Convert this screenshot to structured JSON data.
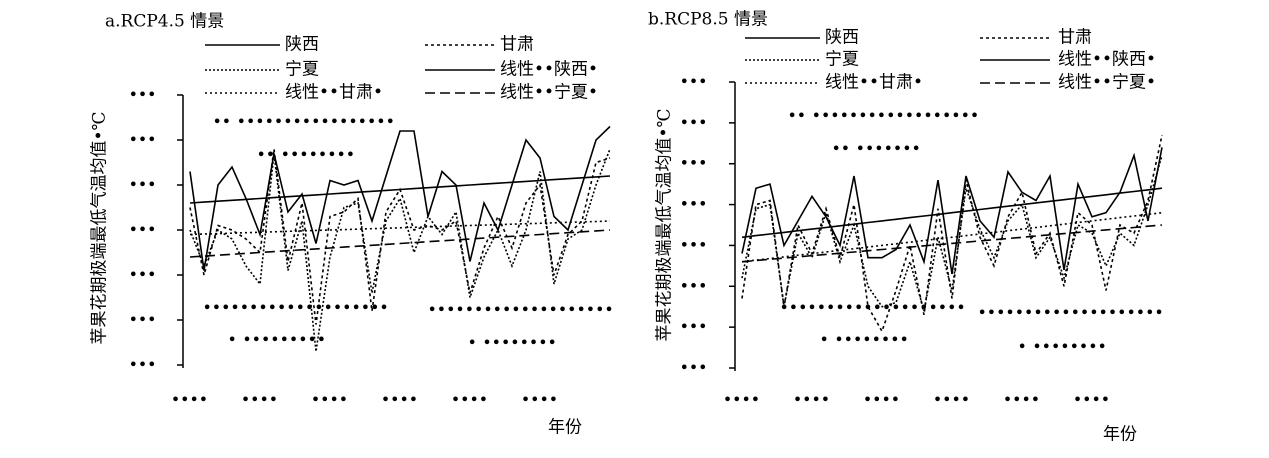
{
  "chart_data": [
    {
      "type": "line",
      "title": "a.RCP4.5 情景",
      "ylabel": "苹果花期极端最低气温均值•℃",
      "xlabel": "年份",
      "categories": [
        "••••",
        null,
        null,
        null,
        null,
        "••••",
        null,
        null,
        null,
        null,
        "••••",
        null,
        null,
        null,
        null,
        "••••",
        null,
        null,
        null,
        null,
        "••••",
        null,
        null,
        null,
        null,
        "••••",
        null,
        null,
        null,
        null,
        null
      ],
      "ylim": [
        0,
        6
      ],
      "yticks": [
        {
          "value": 0,
          "label": "•••"
        },
        {
          "value": 1,
          "label": "•••"
        },
        {
          "value": 2,
          "label": "•••"
        },
        {
          "value": 3,
          "label": "•••"
        },
        {
          "value": 4,
          "label": "•••"
        },
        {
          "value": 5,
          "label": "•••"
        },
        {
          "value": 6,
          "label": "•••"
        }
      ],
      "annotations": [
        "•• •••••••••••••••••",
        "•• ••••••••",
        "••••••••••••••••••••",
        "• •••••••••",
        "••••••••••••••••••••",
        "• ••••••••"
      ],
      "series": [
        {
          "name": "陕西",
          "color": "#000000",
          "dash": "none",
          "values": [
            4.3,
            2.1,
            4.0,
            4.4,
            3.7,
            2.9,
            4.7,
            3.4,
            3.8,
            2.7,
            4.1,
            4.0,
            4.1,
            3.2,
            4.2,
            5.2,
            5.2,
            3.3,
            4.3,
            4.0,
            2.3,
            3.6,
            3.0,
            4.0,
            5.0,
            4.6,
            3.3,
            3.0,
            4.0,
            5.0,
            5.3
          ]
        },
        {
          "name": "甘肃",
          "color": "#000000",
          "dash": "3,3",
          "values": [
            3.5,
            2.0,
            3.1,
            3.0,
            2.8,
            2.5,
            4.8,
            2.3,
            3.6,
            0.9,
            3.3,
            3.4,
            3.7,
            1.2,
            3.4,
            3.9,
            3.0,
            3.1,
            3.0,
            3.2,
            1.6,
            2.6,
            3.3,
            2.6,
            3.6,
            4.0,
            2.0,
            2.9,
            3.2,
            4.5,
            4.6
          ]
        },
        {
          "name": "宁夏",
          "color": "#000000",
          "dash": "2,2",
          "values": [
            3.0,
            2.2,
            3.0,
            2.8,
            2.2,
            1.8,
            4.7,
            2.1,
            3.2,
            0.3,
            2.4,
            3.5,
            3.6,
            1.6,
            3.2,
            3.7,
            2.5,
            3.3,
            2.9,
            3.4,
            1.5,
            2.4,
            3.0,
            2.2,
            3.0,
            4.3,
            1.8,
            2.8,
            3.0,
            4.0,
            4.8
          ]
        },
        {
          "name": "线性••陕西•",
          "color": "#000000",
          "dash": "none",
          "values": [
            3.6,
            3.62,
            3.64,
            3.66,
            3.68,
            3.7,
            3.72,
            3.74,
            3.76,
            3.78,
            3.8,
            3.82,
            3.84,
            3.86,
            3.88,
            3.9,
            3.92,
            3.94,
            3.96,
            3.98,
            4.0,
            4.02,
            4.04,
            4.06,
            4.08,
            4.1,
            4.12,
            4.14,
            4.16,
            4.18,
            4.2
          ]
        },
        {
          "name": "线性••甘肃•",
          "color": "#000000",
          "dash": "2,3",
          "values": [
            2.9,
            2.91,
            2.92,
            2.93,
            2.94,
            2.95,
            2.96,
            2.97,
            2.98,
            2.99,
            3.0,
            3.01,
            3.02,
            3.03,
            3.04,
            3.05,
            3.06,
            3.07,
            3.08,
            3.09,
            3.1,
            3.11,
            3.12,
            3.13,
            3.14,
            3.15,
            3.16,
            3.17,
            3.18,
            3.19,
            3.2
          ]
        },
        {
          "name": "线性••宁夏•",
          "color": "#000000",
          "dash": "10,5",
          "values": [
            2.4,
            2.42,
            2.44,
            2.46,
            2.48,
            2.5,
            2.52,
            2.54,
            2.56,
            2.58,
            2.6,
            2.62,
            2.64,
            2.66,
            2.68,
            2.7,
            2.72,
            2.74,
            2.76,
            2.78,
            2.8,
            2.82,
            2.84,
            2.86,
            2.88,
            2.9,
            2.92,
            2.94,
            2.96,
            2.98,
            3.0
          ]
        }
      ]
    },
    {
      "type": "line",
      "title": "b.RCP8.5 情景",
      "ylabel": "苹果花期极端最低气温均值•℃",
      "xlabel": "年份",
      "categories": [
        "••••",
        null,
        null,
        null,
        null,
        "••••",
        null,
        null,
        null,
        null,
        "••••",
        null,
        null,
        null,
        null,
        "••••",
        null,
        null,
        null,
        null,
        "••••",
        null,
        null,
        null,
        null,
        "••••",
        null,
        null,
        null,
        null,
        null
      ],
      "ylim": [
        0,
        7
      ],
      "yticks": [
        {
          "value": 0,
          "label": "•••"
        },
        {
          "value": 1,
          "label": "•••"
        },
        {
          "value": 2,
          "label": "•••"
        },
        {
          "value": 3,
          "label": "•••"
        },
        {
          "value": 4,
          "label": "•••"
        },
        {
          "value": 5,
          "label": "•••"
        },
        {
          "value": 6,
          "label": "•••"
        },
        {
          "value": 7,
          "label": "•••"
        }
      ],
      "annotations": [
        "•• ••••••••••••••••••",
        "•• •••••••",
        "••••••••••••••••••••",
        "• ••••••••",
        "••••••••••••••••••••",
        "• ••••••••"
      ],
      "series": [
        {
          "name": "陕西",
          "color": "#000000",
          "dash": "none",
          "values": [
            2.8,
            4.4,
            4.5,
            3.0,
            3.6,
            4.2,
            3.7,
            3.0,
            4.7,
            2.7,
            2.7,
            2.9,
            3.5,
            2.6,
            4.6,
            2.3,
            4.7,
            3.6,
            3.2,
            4.8,
            4.3,
            4.1,
            4.7,
            2.4,
            4.5,
            3.7,
            3.8,
            4.3,
            5.2,
            3.6,
            5.4
          ]
        },
        {
          "name": "甘肃",
          "color": "#000000",
          "dash": "3,3",
          "values": [
            1.7,
            4.0,
            4.1,
            1.5,
            3.5,
            2.8,
            3.9,
            2.7,
            4.0,
            1.5,
            0.9,
            1.9,
            3.0,
            1.3,
            3.9,
            1.7,
            4.6,
            3.2,
            2.5,
            3.7,
            4.3,
            2.8,
            3.3,
            2.0,
            3.8,
            3.5,
            1.9,
            3.5,
            3.3,
            4.1,
            5.7
          ]
        },
        {
          "name": "宁夏",
          "color": "#000000",
          "dash": "2,2",
          "values": [
            2.2,
            3.9,
            4.0,
            1.5,
            3.3,
            2.7,
            3.8,
            2.6,
            3.5,
            2.0,
            1.5,
            1.6,
            2.6,
            1.4,
            3.2,
            1.9,
            4.4,
            3.4,
            2.7,
            3.6,
            4.0,
            2.7,
            3.2,
            2.2,
            3.5,
            3.3,
            2.5,
            3.3,
            3.0,
            4.0,
            5.2
          ]
        },
        {
          "name": "线性••陕西•",
          "color": "#000000",
          "dash": "none",
          "values": [
            3.2,
            3.24,
            3.28,
            3.32,
            3.36,
            3.4,
            3.44,
            3.48,
            3.52,
            3.56,
            3.6,
            3.64,
            3.68,
            3.72,
            3.76,
            3.8,
            3.84,
            3.88,
            3.92,
            3.96,
            4.0,
            4.04,
            4.08,
            4.12,
            4.16,
            4.2,
            4.24,
            4.28,
            4.32,
            4.36,
            4.4
          ]
        },
        {
          "name": "线性••甘肃•",
          "color": "#000000",
          "dash": "2,3",
          "values": [
            2.6,
            2.64,
            2.68,
            2.72,
            2.76,
            2.8,
            2.84,
            2.88,
            2.92,
            2.96,
            3.0,
            3.04,
            3.08,
            3.12,
            3.16,
            3.2,
            3.24,
            3.28,
            3.32,
            3.36,
            3.4,
            3.44,
            3.48,
            3.52,
            3.56,
            3.6,
            3.64,
            3.68,
            3.72,
            3.76,
            3.8
          ]
        },
        {
          "name": "线性••宁夏•",
          "color": "#000000",
          "dash": "10,5",
          "values": [
            2.6,
            2.63,
            2.66,
            2.69,
            2.72,
            2.75,
            2.78,
            2.81,
            2.84,
            2.87,
            2.9,
            2.93,
            2.96,
            2.99,
            3.02,
            3.05,
            3.08,
            3.11,
            3.14,
            3.17,
            3.2,
            3.23,
            3.26,
            3.29,
            3.32,
            3.35,
            3.38,
            3.41,
            3.44,
            3.47,
            3.5
          ]
        }
      ]
    }
  ]
}
